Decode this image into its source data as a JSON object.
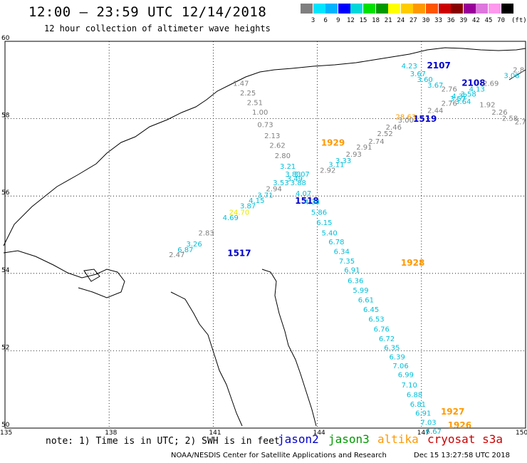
{
  "header": {
    "title": "12:00 — 23:59 UTC 12/14/2018",
    "subtitle": "12 hour collection of altimeter wave heights"
  },
  "colorbar": {
    "colors": [
      "#7f7f7f",
      "#00e5ff",
      "#00b3ff",
      "#0000ff",
      "#00d8d8",
      "#00e000",
      "#009900",
      "#ffff00",
      "#ffcc00",
      "#ff9900",
      "#ff5500",
      "#cc0000",
      "#880000",
      "#990099",
      "#dd77dd",
      "#ff99ee",
      "#000000"
    ],
    "ticks": [
      "3",
      "6",
      "9",
      "12",
      "15",
      "18",
      "21",
      "24",
      "27",
      "30",
      "33",
      "36",
      "39",
      "42",
      "45",
      "70"
    ],
    "unit": "(ft)"
  },
  "axes": {
    "lat_labels": [
      "60",
      "58",
      "56",
      "54",
      "52",
      "50"
    ],
    "lon_labels": [
      "135",
      "138",
      "141",
      "144",
      "147",
      "150"
    ]
  },
  "passes": [
    {
      "label": "2107",
      "color": "#0000cc",
      "lon": 147.5,
      "lat": 59.3
    },
    {
      "label": "2108",
      "color": "#0000cc",
      "lon": 148.5,
      "lat": 58.85
    },
    {
      "label": "1519",
      "color": "#0000cc",
      "lon": 147.1,
      "lat": 57.92
    },
    {
      "label": "1929",
      "color": "#ff9900",
      "lon": 144.45,
      "lat": 57.3
    },
    {
      "label": "1518",
      "color": "#0000cc",
      "lon": 143.7,
      "lat": 55.8
    },
    {
      "label": "1517",
      "color": "#0000cc",
      "lon": 141.75,
      "lat": 54.45
    },
    {
      "label": "1928",
      "color": "#ff9900",
      "lon": 146.75,
      "lat": 54.2
    },
    {
      "label": "1927",
      "color": "#ff9900",
      "lon": 147.9,
      "lat": 50.35
    },
    {
      "label": "1926",
      "color": "#ff9900",
      "lon": 148.1,
      "lat": 50.0
    }
  ],
  "observations": [
    {
      "v": "4.23",
      "c": "#00bfd8",
      "lon": 146.65,
      "lat": 59.3
    },
    {
      "v": "3.67",
      "c": "#00bfd8",
      "lon": 146.9,
      "lat": 59.1
    },
    {
      "v": "3.60",
      "c": "#00bfd8",
      "lon": 147.1,
      "lat": 58.95
    },
    {
      "v": "3.67",
      "c": "#00bfd8",
      "lon": 147.4,
      "lat": 58.8
    },
    {
      "v": "2.76",
      "c": "#808080",
      "lon": 147.8,
      "lat": 58.7
    },
    {
      "v": "2.69",
      "c": "#808080",
      "lon": 149.0,
      "lat": 58.85
    },
    {
      "v": "3.08",
      "c": "#00bfd8",
      "lon": 149.6,
      "lat": 59.05
    },
    {
      "v": "2.8",
      "c": "#808080",
      "lon": 149.8,
      "lat": 59.2
    },
    {
      "v": "4.13",
      "c": "#00bfd8",
      "lon": 148.6,
      "lat": 58.7
    },
    {
      "v": "3.58",
      "c": "#00bfd8",
      "lon": 148.35,
      "lat": 58.57
    },
    {
      "v": "4.32",
      "c": "#00bfd8",
      "lon": 148.1,
      "lat": 58.52
    },
    {
      "v": "3.57",
      "c": "#00bfd8",
      "lon": 148.05,
      "lat": 58.45
    },
    {
      "v": "2.76",
      "c": "#808080",
      "lon": 147.8,
      "lat": 58.33
    },
    {
      "v": "3.64",
      "c": "#00bfd8",
      "lon": 148.2,
      "lat": 58.38
    },
    {
      "v": "1.92",
      "c": "#808080",
      "lon": 148.9,
      "lat": 58.3
    },
    {
      "v": "2.44",
      "c": "#808080",
      "lon": 147.4,
      "lat": 58.15
    },
    {
      "v": "2.26",
      "c": "#808080",
      "lon": 149.25,
      "lat": 58.1
    },
    {
      "v": "2.58",
      "c": "#808080",
      "lon": 149.55,
      "lat": 57.95
    },
    {
      "v": "2.7",
      "c": "#808080",
      "lon": 149.85,
      "lat": 57.85
    },
    {
      "v": "28.63",
      "c": "#ff9900",
      "lon": 146.55,
      "lat": 57.98
    },
    {
      "v": "3.00",
      "c": "#808080",
      "lon": 146.55,
      "lat": 57.9
    },
    {
      "v": "2.46",
      "c": "#808080",
      "lon": 146.2,
      "lat": 57.72
    },
    {
      "v": "2.52",
      "c": "#808080",
      "lon": 145.95,
      "lat": 57.55
    },
    {
      "v": "2.74",
      "c": "#808080",
      "lon": 145.7,
      "lat": 57.35
    },
    {
      "v": "2.91",
      "c": "#808080",
      "lon": 145.35,
      "lat": 57.2
    },
    {
      "v": "2.93",
      "c": "#808080",
      "lon": 145.05,
      "lat": 57.02
    },
    {
      "v": "3.33",
      "c": "#00bfd8",
      "lon": 144.75,
      "lat": 56.85
    },
    {
      "v": "3.11",
      "c": "#00bfd8",
      "lon": 144.55,
      "lat": 56.75
    },
    {
      "v": "2.92",
      "c": "#808080",
      "lon": 144.3,
      "lat": 56.6
    },
    {
      "v": "1.47",
      "c": "#808080",
      "lon": 141.8,
      "lat": 58.85
    },
    {
      "v": "2.25",
      "c": "#808080",
      "lon": 142.0,
      "lat": 58.6
    },
    {
      "v": "2.51",
      "c": "#808080",
      "lon": 142.2,
      "lat": 58.35
    },
    {
      "v": "1.00",
      "c": "#808080",
      "lon": 142.35,
      "lat": 58.1
    },
    {
      "v": "0.73",
      "c": "#808080",
      "lon": 142.5,
      "lat": 57.78
    },
    {
      "v": "2.13",
      "c": "#808080",
      "lon": 142.7,
      "lat": 57.5
    },
    {
      "v": "2.62",
      "c": "#808080",
      "lon": 142.85,
      "lat": 57.25
    },
    {
      "v": "2.80",
      "c": "#808080",
      "lon": 143.0,
      "lat": 56.98
    },
    {
      "v": "3.21",
      "c": "#00bfd8",
      "lon": 143.15,
      "lat": 56.7
    },
    {
      "v": "3.83",
      "c": "#00bfd8",
      "lon": 143.3,
      "lat": 56.5
    },
    {
      "v": "3.07",
      "c": "#00bfd8",
      "lon": 143.55,
      "lat": 56.5
    },
    {
      "v": "3.49",
      "c": "#00bfd8",
      "lon": 143.35,
      "lat": 56.38
    },
    {
      "v": "3.53",
      "c": "#00bfd8",
      "lon": 142.95,
      "lat": 56.28
    },
    {
      "v": "3.88",
      "c": "#00bfd8",
      "lon": 143.45,
      "lat": 56.28
    },
    {
      "v": "2.94",
      "c": "#808080",
      "lon": 142.75,
      "lat": 56.12
    },
    {
      "v": "4.07",
      "c": "#00bfd8",
      "lon": 143.6,
      "lat": 56.0
    },
    {
      "v": "3.71",
      "c": "#00bfd8",
      "lon": 142.5,
      "lat": 55.96
    },
    {
      "v": "4.15",
      "c": "#00bfd8",
      "lon": 142.25,
      "lat": 55.82
    },
    {
      "v": "4.34",
      "c": "#00bfd8",
      "lon": 143.85,
      "lat": 55.78
    },
    {
      "v": "3.87",
      "c": "#00bfd8",
      "lon": 142.0,
      "lat": 55.68
    },
    {
      "v": "24.70",
      "c": "#e8e800",
      "lon": 141.75,
      "lat": 55.52
    },
    {
      "v": "4.69",
      "c": "#00bfd8",
      "lon": 141.5,
      "lat": 55.38
    },
    {
      "v": "5.86",
      "c": "#00bfd8",
      "lon": 144.05,
      "lat": 55.52
    },
    {
      "v": "6.15",
      "c": "#00bfd8",
      "lon": 144.2,
      "lat": 55.25
    },
    {
      "v": "2.83",
      "c": "#808080",
      "lon": 140.8,
      "lat": 54.98
    },
    {
      "v": "5.40",
      "c": "#00bfd8",
      "lon": 144.35,
      "lat": 54.98
    },
    {
      "v": "6.78",
      "c": "#00bfd8",
      "lon": 144.55,
      "lat": 54.75
    },
    {
      "v": "3.26",
      "c": "#00bfd8",
      "lon": 140.45,
      "lat": 54.7
    },
    {
      "v": "6.87",
      "c": "#00bfd8",
      "lon": 140.2,
      "lat": 54.55
    },
    {
      "v": "2.47",
      "c": "#808080",
      "lon": 139.95,
      "lat": 54.42
    },
    {
      "v": "6.34",
      "c": "#00bfd8",
      "lon": 144.7,
      "lat": 54.5
    },
    {
      "v": "7.35",
      "c": "#00bfd8",
      "lon": 144.85,
      "lat": 54.25
    },
    {
      "v": "6.91",
      "c": "#00bfd8",
      "lon": 145.0,
      "lat": 54.02
    },
    {
      "v": "6.36",
      "c": "#00bfd8",
      "lon": 145.1,
      "lat": 53.75
    },
    {
      "v": "5.99",
      "c": "#00bfd8",
      "lon": 145.25,
      "lat": 53.5
    },
    {
      "v": "6.61",
      "c": "#00bfd8",
      "lon": 145.4,
      "lat": 53.25
    },
    {
      "v": "6.45",
      "c": "#00bfd8",
      "lon": 145.55,
      "lat": 53.0
    },
    {
      "v": "6.53",
      "c": "#00bfd8",
      "lon": 145.7,
      "lat": 52.75
    },
    {
      "v": "6.76",
      "c": "#00bfd8",
      "lon": 145.85,
      "lat": 52.5
    },
    {
      "v": "6.72",
      "c": "#00bfd8",
      "lon": 146.0,
      "lat": 52.25
    },
    {
      "v": "6.35",
      "c": "#00bfd8",
      "lon": 146.15,
      "lat": 52.02
    },
    {
      "v": "6.39",
      "c": "#00bfd8",
      "lon": 146.3,
      "lat": 51.78
    },
    {
      "v": "7.06",
      "c": "#00bfd8",
      "lon": 146.4,
      "lat": 51.55
    },
    {
      "v": "6.99",
      "c": "#00bfd8",
      "lon": 146.55,
      "lat": 51.32
    },
    {
      "v": "7.10",
      "c": "#00bfd8",
      "lon": 146.65,
      "lat": 51.05
    },
    {
      "v": "6.88",
      "c": "#00bfd8",
      "lon": 146.8,
      "lat": 50.8
    },
    {
      "v": "6.81",
      "c": "#00bfd8",
      "lon": 146.9,
      "lat": 50.55
    },
    {
      "v": "6.91",
      "c": "#00bfd8",
      "lon": 147.05,
      "lat": 50.32
    },
    {
      "v": "7.03",
      "c": "#00bfd8",
      "lon": 147.2,
      "lat": 50.08
    },
    {
      "v": "6.67",
      "c": "#00bfd8",
      "lon": 147.35,
      "lat": 49.85
    }
  ],
  "footer": {
    "note": "note: 1) Time is in UTC; 2) SWH is in feet",
    "legend": [
      {
        "label": "jason2",
        "color": "#0000cc"
      },
      {
        "label": "jason3",
        "color": "#009900"
      },
      {
        "label": "altika",
        "color": "#ff9900"
      },
      {
        "label": "cryosat s3a",
        "color": "#cc0000"
      }
    ],
    "credit": "NOAA/NESDIS Center for Satellite Applications and Research",
    "timestamp": "Dec 15 13:27:58 UTC 2018"
  }
}
